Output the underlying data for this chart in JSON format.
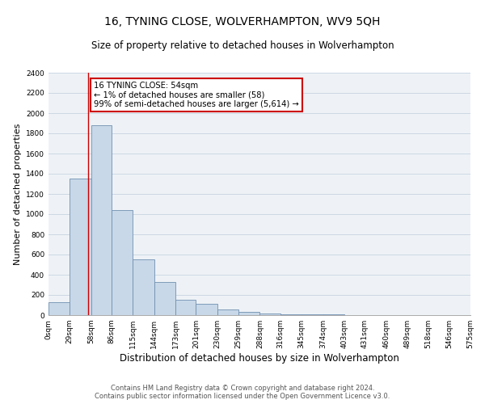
{
  "title": "16, TYNING CLOSE, WOLVERHAMPTON, WV9 5QH",
  "subtitle": "Size of property relative to detached houses in Wolverhampton",
  "xlabel": "Distribution of detached houses by size in Wolverhampton",
  "ylabel": "Number of detached properties",
  "bin_edges": [
    0,
    29,
    58,
    86,
    115,
    144,
    173,
    201,
    230,
    259,
    288,
    316,
    345,
    374,
    403,
    431,
    460,
    489,
    518,
    546,
    575
  ],
  "bin_labels": [
    "0sqm",
    "29sqm",
    "58sqm",
    "86sqm",
    "115sqm",
    "144sqm",
    "173sqm",
    "201sqm",
    "230sqm",
    "259sqm",
    "288sqm",
    "316sqm",
    "345sqm",
    "374sqm",
    "403sqm",
    "431sqm",
    "460sqm",
    "489sqm",
    "518sqm",
    "546sqm",
    "575sqm"
  ],
  "bar_heights": [
    130,
    1350,
    1880,
    1040,
    550,
    330,
    155,
    110,
    60,
    30,
    15,
    5,
    5,
    5,
    2,
    2,
    2,
    2,
    2,
    2
  ],
  "bar_color": "#c8d8e8",
  "bar_edgecolor": "#7090b0",
  "vline_x": 54,
  "vline_color": "#cc0000",
  "ylim": [
    0,
    2400
  ],
  "yticks": [
    0,
    200,
    400,
    600,
    800,
    1000,
    1200,
    1400,
    1600,
    1800,
    2000,
    2200,
    2400
  ],
  "annotation_title": "16 TYNING CLOSE: 54sqm",
  "annotation_line1": "← 1% of detached houses are smaller (58)",
  "annotation_line2": "99% of semi-detached houses are larger (5,614) →",
  "annotation_box_color": "#cc0000",
  "grid_color": "#ccd8e4",
  "background_color": "#eef2f6",
  "footer_line1": "Contains HM Land Registry data © Crown copyright and database right 2024.",
  "footer_line2": "Contains public sector information licensed under the Open Government Licence v3.0.",
  "title_fontsize": 10,
  "subtitle_fontsize": 8.5,
  "xlabel_fontsize": 8.5,
  "ylabel_fontsize": 8,
  "tick_fontsize": 6.5,
  "footer_fontsize": 6
}
